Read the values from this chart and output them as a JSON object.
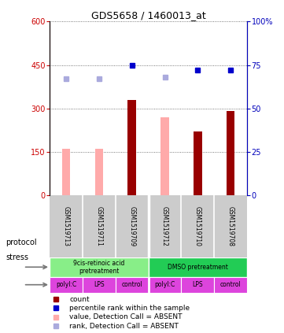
{
  "title": "GDS5658 / 1460013_at",
  "samples": [
    "GSM1519713",
    "GSM1519711",
    "GSM1519709",
    "GSM1519712",
    "GSM1519710",
    "GSM1519708"
  ],
  "bar_values_present": [
    null,
    null,
    330,
    null,
    220,
    290
  ],
  "bar_values_absent": [
    160,
    160,
    null,
    270,
    null,
    null
  ],
  "rank_present": [
    null,
    null,
    75,
    null,
    72,
    72
  ],
  "rank_absent": [
    67,
    67,
    null,
    68,
    null,
    null
  ],
  "ylim_left": [
    0,
    600
  ],
  "ylim_right": [
    0,
    100
  ],
  "yticks_left": [
    0,
    150,
    300,
    450,
    600
  ],
  "ytick_labels_left": [
    "0",
    "150",
    "300",
    "450",
    "600"
  ],
  "ytick_labels_right": [
    "0",
    "25",
    "50",
    "75",
    "100%"
  ],
  "left_axis_color": "#cc0000",
  "right_axis_color": "#0000bb",
  "protocol_groups": [
    {
      "label": "9cis-retinoic acid\npretreatment",
      "start": 0,
      "end": 3,
      "color": "#88ee88"
    },
    {
      "label": "DMSO pretreatment",
      "start": 3,
      "end": 6,
      "color": "#22cc55"
    }
  ],
  "stress_labels": [
    "polyI:C",
    "LPS",
    "control",
    "polyI:C",
    "LPS",
    "control"
  ],
  "stress_color": "#dd44dd",
  "sample_box_color": "#cccccc",
  "bar_width": 0.25,
  "dotted_grid_color": "#555555",
  "present_bar_color": "#990000",
  "absent_bar_color": "#ffaaaa",
  "present_rank_color": "#0000cc",
  "absent_rank_color": "#aaaadd",
  "legend_items": [
    {
      "color": "#990000",
      "label": "count"
    },
    {
      "color": "#0000cc",
      "label": "percentile rank within the sample"
    },
    {
      "color": "#ffaaaa",
      "label": "value, Detection Call = ABSENT"
    },
    {
      "color": "#aaaadd",
      "label": "rank, Detection Call = ABSENT"
    }
  ]
}
